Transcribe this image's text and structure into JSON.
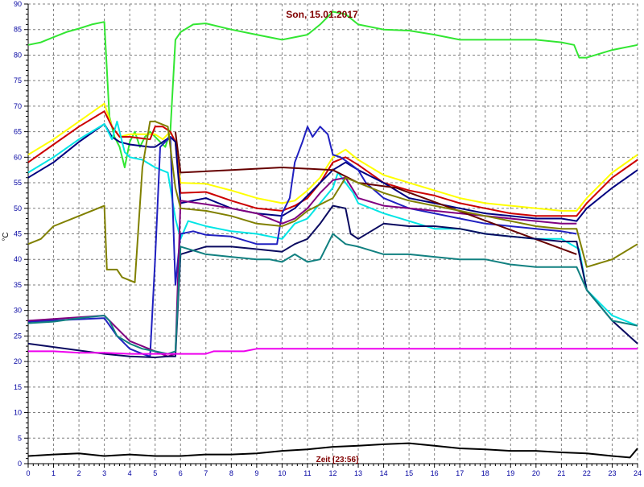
{
  "chart_data": {
    "type": "line",
    "title": "Son, 15.01.2017",
    "xlabel": "Zeit [23:56]",
    "ylabel": "°C",
    "xlim": [
      0,
      24
    ],
    "ylim": [
      0,
      90
    ],
    "x_ticks": [
      "0",
      "1",
      "2",
      "3",
      "4",
      "5",
      "6",
      "7",
      "8",
      "9",
      "10",
      "11",
      "12",
      "13",
      "14",
      "15",
      "16",
      "17",
      "18",
      "19",
      "20",
      "21",
      "22",
      "23",
      "24"
    ],
    "y_ticks": [
      "0",
      "5",
      "10",
      "15",
      "20",
      "25",
      "30",
      "35",
      "40",
      "45",
      "50",
      "55",
      "60",
      "65",
      "70",
      "75",
      "80",
      "85",
      "90"
    ],
    "grid": true,
    "legend": "none",
    "series": [
      {
        "color": "#32e632",
        "width": 2,
        "x": [
          0,
          0.5,
          1,
          1.5,
          2,
          2.5,
          3,
          3.2,
          3.4,
          3.6,
          3.8,
          4.0,
          4.2,
          4.4,
          4.6,
          4.8,
          5.0,
          5.2,
          5.4,
          5.6,
          5.8,
          6,
          6.5,
          7,
          8,
          9,
          10,
          11,
          11.5,
          12,
          12.5,
          13,
          14,
          15,
          16,
          17,
          18,
          19,
          20,
          21,
          21.5,
          21.7,
          22,
          23,
          24
        ],
        "y": [
          82,
          82.5,
          83.5,
          84.5,
          85.2,
          86,
          86.5,
          68,
          64,
          62,
          58,
          63,
          65,
          62,
          64,
          65,
          64,
          63,
          62,
          65,
          83,
          84.5,
          86,
          86.2,
          85,
          84,
          83,
          84,
          86,
          88.5,
          88,
          86,
          85,
          84.8,
          84,
          83,
          83,
          83,
          83,
          82.5,
          82,
          79.5,
          79.5,
          81,
          82
        ]
      },
      {
        "color": "#ffff00",
        "width": 2,
        "x": [
          0,
          1,
          2,
          3,
          3.3,
          3.6,
          4,
          4.5,
          5,
          5.3,
          5.6,
          5.8,
          6,
          7,
          8,
          9,
          10,
          10.5,
          11,
          11.5,
          12,
          12.5,
          13,
          14,
          15,
          16,
          17,
          18,
          19,
          20,
          21,
          21.6,
          22,
          23,
          24
        ],
        "y": [
          60.5,
          63.5,
          67,
          70.5,
          66,
          64,
          64.5,
          64.5,
          64.5,
          63.5,
          65,
          63,
          55,
          54.8,
          53.5,
          52,
          51,
          51.5,
          53.5,
          56,
          60,
          61.5,
          59.5,
          56.5,
          55,
          53.5,
          52,
          51,
          50.5,
          50,
          49.5,
          49.5,
          52,
          57,
          60.5
        ]
      },
      {
        "color": "#cc0000",
        "width": 2,
        "x": [
          0,
          1,
          2,
          3,
          3.3,
          3.6,
          4,
          4.8,
          5,
          5.3,
          5.6,
          5.8,
          6,
          7,
          8,
          9,
          10,
          10.5,
          11,
          11.5,
          12,
          12.5,
          13,
          14,
          15,
          16,
          17,
          18,
          19,
          20,
          21,
          21.6,
          22,
          23,
          24
        ],
        "y": [
          59,
          62.5,
          66,
          69,
          66,
          64,
          64,
          63.5,
          66,
          66,
          65,
          63,
          53,
          53.2,
          51.5,
          50,
          49.5,
          50.5,
          52,
          55,
          59,
          60,
          58.5,
          55,
          53.5,
          52.5,
          51,
          50,
          49,
          48.5,
          48.5,
          48.5,
          51,
          56,
          59.5
        ]
      },
      {
        "color": "#000080",
        "width": 2,
        "x": [
          0,
          1,
          2,
          3,
          3.3,
          3.6,
          4,
          4.8,
          5,
          5.3,
          5.6,
          5.8,
          6,
          7,
          8,
          9,
          10,
          10.5,
          11,
          11.5,
          12,
          12.5,
          13,
          14,
          15,
          16,
          17,
          18,
          19,
          20,
          21,
          21.6,
          22,
          23,
          24
        ],
        "y": [
          56,
          59,
          63,
          66.5,
          64,
          63,
          62.5,
          62,
          62,
          63,
          64,
          63,
          51,
          52,
          50,
          49,
          48.5,
          50,
          52.5,
          55,
          57.5,
          59,
          57.5,
          55,
          52,
          51,
          50,
          49,
          48.5,
          48,
          48,
          47.5,
          50,
          54,
          57.5
        ]
      },
      {
        "color": "#00e5e5",
        "width": 2,
        "x": [
          0,
          1,
          2,
          3,
          3.3,
          3.5,
          3.8,
          4,
          4.5,
          5,
          5.5,
          5.8,
          6,
          6.3,
          7,
          8,
          9,
          10,
          10.5,
          11,
          11.5,
          12,
          12.2,
          12.5,
          12.8,
          13,
          14,
          15,
          16,
          17,
          18,
          19,
          20,
          21,
          21.7,
          22,
          23,
          24
        ],
        "y": [
          57,
          60,
          63.5,
          66.5,
          63.5,
          67,
          61,
          60,
          59.5,
          58,
          57,
          48,
          44,
          47.5,
          46.5,
          45.5,
          45,
          44,
          47,
          48,
          51,
          54,
          57,
          55,
          53,
          51,
          49,
          47.5,
          46,
          46,
          45,
          44.5,
          44,
          44,
          42,
          34,
          29,
          27
        ]
      },
      {
        "color": "#2020c0",
        "width": 2,
        "x": [
          0,
          3,
          3.5,
          4,
          4.5,
          4.8,
          5.0,
          5.2,
          5.6,
          5.8,
          6,
          6.5,
          7,
          8,
          9,
          9.8,
          10,
          10.3,
          10.5,
          10.8,
          11,
          11.2,
          11.5,
          11.8,
          12,
          12.3,
          12.6,
          13,
          13.3,
          14,
          15,
          16,
          17,
          18,
          19,
          20,
          21,
          21.6
        ],
        "y": [
          27.8,
          28.5,
          25,
          22.5,
          21.5,
          21,
          40,
          62,
          64,
          35,
          45,
          45.5,
          44.8,
          44.5,
          43,
          43,
          49,
          52,
          59,
          63,
          66,
          64,
          66,
          64.5,
          60.5,
          60,
          59,
          57.5,
          55,
          52,
          50,
          49,
          48,
          47,
          46.5,
          46,
          45.5,
          45
        ]
      },
      {
        "color": "#800080",
        "width": 2,
        "x": [
          0,
          3,
          4,
          5,
          5.5,
          5.8,
          6,
          7,
          8,
          9,
          10,
          10.5,
          11,
          11.5,
          12,
          12.5,
          13,
          14,
          15,
          16,
          17,
          18,
          19,
          20,
          21,
          21.6
        ],
        "y": [
          28,
          29,
          24,
          22,
          21,
          21.5,
          51.5,
          50.8,
          50,
          49,
          47,
          48,
          50,
          53,
          55.5,
          56,
          52,
          50.5,
          50,
          49.5,
          49,
          48.5,
          48,
          47.5,
          47,
          47
        ]
      },
      {
        "color": "#660000",
        "width": 2,
        "x": [
          5.8,
          6,
          8,
          10,
          12,
          13,
          14.5,
          21.6
        ],
        "y": [
          65,
          57,
          57.5,
          58,
          57.5,
          55,
          54,
          41
        ]
      },
      {
        "color": "#808000",
        "width": 2,
        "x": [
          0,
          0.5,
          1,
          2,
          3,
          3.1,
          3.5,
          3.7,
          4.2,
          4.5,
          4.8,
          5,
          5.5,
          5.8,
          6,
          7,
          8,
          9,
          10,
          10.5,
          11,
          12,
          12.5,
          13,
          14,
          15,
          16,
          17,
          18,
          19,
          20,
          21,
          21.6,
          22,
          23,
          24
        ],
        "y": [
          43,
          44,
          46.5,
          48.5,
          50.5,
          38,
          38,
          36.5,
          35.5,
          58,
          67,
          67,
          66,
          54,
          50,
          49.5,
          48.5,
          47,
          46.5,
          47.5,
          49.5,
          52,
          56,
          55,
          53,
          51.5,
          50.5,
          49.5,
          48.5,
          47.5,
          46.5,
          46,
          46,
          38.5,
          40,
          43
        ]
      },
      {
        "color": "#0a0a60",
        "width": 2,
        "x": [
          0,
          3,
          4,
          5,
          5.5,
          5.8,
          6,
          7,
          8,
          9,
          10,
          10.5,
          11,
          11.5,
          12,
          12.5,
          12.7,
          13,
          13.5,
          14,
          15,
          16,
          17,
          18,
          19,
          20,
          21,
          21.6,
          22,
          23,
          24
        ],
        "y": [
          23.5,
          21.5,
          21,
          20.8,
          21,
          21,
          41,
          42.5,
          42.5,
          42,
          41.5,
          43,
          44,
          47,
          50.5,
          50,
          45,
          44,
          45.5,
          47,
          46.5,
          46.5,
          46,
          45,
          44.5,
          44,
          43.5,
          43.5,
          34,
          28,
          23.5
        ]
      },
      {
        "color": "#118080",
        "width": 2,
        "x": [
          0,
          1,
          2,
          3,
          3.2,
          3.5,
          4,
          4.5,
          5,
          5.5,
          5.8,
          6,
          7,
          8,
          9,
          9.5,
          10,
          10.5,
          11,
          11.5,
          12,
          12.5,
          13,
          14,
          15,
          16,
          17,
          18,
          19,
          20,
          21,
          21.6,
          22,
          23,
          24
        ],
        "y": [
          27.5,
          27.8,
          28.5,
          29,
          28,
          25,
          23.5,
          22.5,
          22,
          21.5,
          22,
          42.5,
          41,
          40.5,
          40,
          40,
          39.5,
          41,
          39.5,
          40,
          45,
          43,
          42.5,
          41,
          41,
          40.5,
          40,
          40,
          39,
          38.5,
          38.5,
          38.5,
          34,
          28,
          27
        ]
      },
      {
        "color": "#ee00ee",
        "width": 2,
        "x": [
          0,
          0.5,
          1,
          2,
          3,
          4,
          5,
          6,
          7,
          7.3,
          8,
          8.5,
          9,
          10,
          12,
          14,
          16,
          18,
          20,
          22,
          24
        ],
        "y": [
          22,
          22,
          22,
          21.7,
          21.7,
          21.5,
          21.5,
          21.5,
          21.5,
          22,
          22,
          22,
          22.5,
          22.5,
          22.5,
          22.5,
          22.5,
          22.5,
          22.5,
          22.5,
          22.5
        ]
      },
      {
        "color": "#000000",
        "width": 2,
        "x": [
          0,
          1,
          2,
          3,
          4,
          5,
          6,
          7,
          8,
          9,
          10,
          11,
          12,
          13,
          14,
          15,
          16,
          17,
          18,
          19,
          20,
          21,
          22,
          23,
          23.7,
          24
        ],
        "y": [
          1.5,
          1.8,
          2.0,
          1.5,
          1.8,
          1.5,
          1.5,
          1.8,
          1.8,
          2.0,
          2.5,
          2.8,
          3.3,
          3.5,
          3.8,
          4.0,
          3.5,
          3.0,
          2.8,
          2.5,
          2.5,
          2.2,
          2.0,
          1.5,
          1.2,
          3.0
        ]
      }
    ]
  }
}
